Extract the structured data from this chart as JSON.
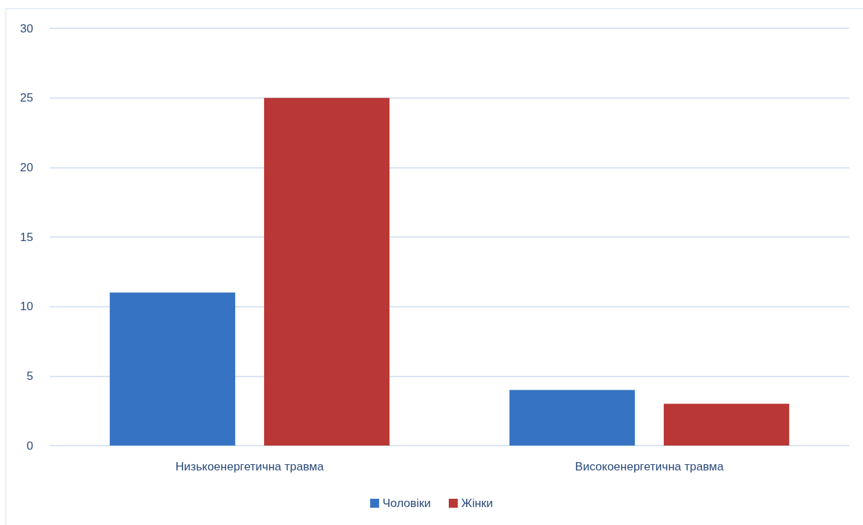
{
  "chart_data": {
    "type": "bar",
    "categories": [
      "Низькоенергетична травма",
      "Високоенергетична травма"
    ],
    "series": [
      {
        "name": "Чоловіки",
        "color": "#3673c2",
        "values": [
          11,
          4
        ]
      },
      {
        "name": "Жінки",
        "color": "#b93734",
        "values": [
          25,
          3
        ]
      }
    ],
    "ylim": [
      0,
      30
    ],
    "yticks": [
      0,
      5,
      10,
      15,
      20,
      25,
      30
    ],
    "grid": "y",
    "legend": "bottom"
  }
}
